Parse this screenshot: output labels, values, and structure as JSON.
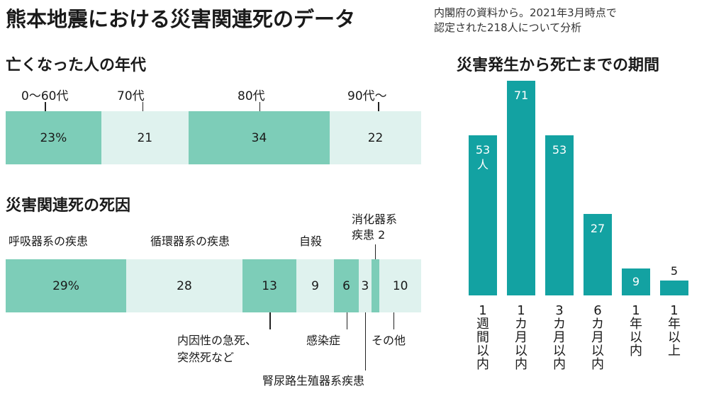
{
  "header": {
    "title": "熊本地震における災害関連死のデータ",
    "source_line1": "内閣府の資料から。2021年3月時点で",
    "source_line2": "認定された218人について分析"
  },
  "colors": {
    "dark": "#7dcdb8",
    "light": "#dff2ee",
    "bar": "#13a2a2"
  },
  "chart_data": [
    {
      "type": "bar",
      "orientation": "stacked-horizontal",
      "title": "亡くなった人の年代",
      "unit": "%",
      "categories": [
        "0〜60代",
        "70代",
        "80代",
        "90代〜"
      ],
      "values": [
        23,
        21,
        34,
        22
      ],
      "display": [
        "23%",
        "21",
        "34",
        "22"
      ]
    },
    {
      "type": "bar",
      "orientation": "stacked-horizontal",
      "title": "災害関連死の死因",
      "unit": "%",
      "categories": [
        "呼吸器系の疾患",
        "循環器系の疾患",
        "内因性の急死、突然死など",
        "自殺",
        "感染症",
        "腎尿路生殖器系疾患",
        "消化器系疾患",
        "その他"
      ],
      "values": [
        29,
        28,
        13,
        9,
        6,
        3,
        2,
        10
      ],
      "display": [
        "29%",
        "28",
        "13",
        "9",
        "6",
        "3",
        "",
        "10"
      ],
      "above_labels": {
        "respiratory": "呼吸器系の疾患",
        "circulatory": "循環器系の疾患",
        "suicide": "自殺",
        "digestive_1": "消化器系",
        "digestive_2": "疾患 2"
      },
      "below_labels": {
        "sudden_1": "内因性の急死、",
        "sudden_2": "突然死など",
        "infection": "感染症",
        "renal": "腎尿路生殖器系疾患",
        "other": "その他"
      }
    },
    {
      "type": "bar",
      "orientation": "vertical",
      "title": "災害発生から死亡までの期間",
      "unit": "人",
      "categories": [
        "1週間以内",
        "1カ月以内",
        "3カ月以内",
        "6カ月以内",
        "1年以内",
        "1年以上"
      ],
      "values": [
        53,
        71,
        53,
        27,
        9,
        5
      ],
      "first_value_unit_label": "人",
      "category_chars": [
        [
          "1",
          "週",
          "間",
          "以",
          "内"
        ],
        [
          "1",
          "カ",
          "月",
          "以",
          "内"
        ],
        [
          "3",
          "カ",
          "月",
          "以",
          "内"
        ],
        [
          "6",
          "カ",
          "月",
          "以",
          "内"
        ],
        [
          "1",
          "年",
          "以",
          "内"
        ],
        [
          "1",
          "年",
          "以",
          "上"
        ]
      ]
    }
  ]
}
